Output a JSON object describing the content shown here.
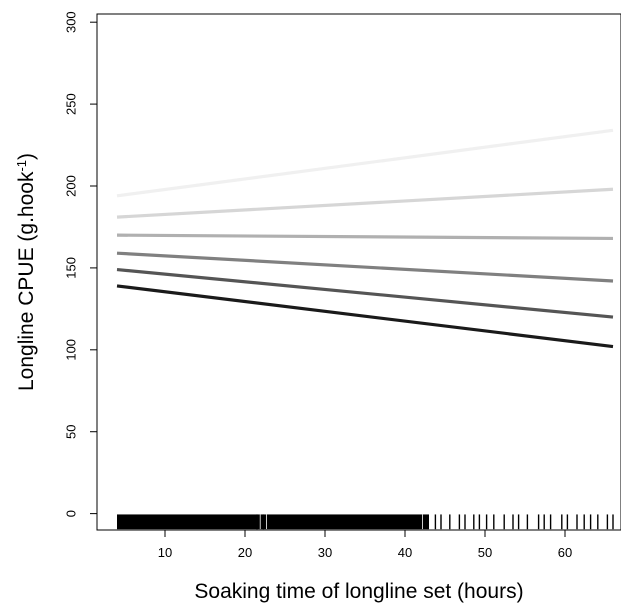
{
  "chart_data": {
    "type": "line",
    "title": "",
    "xlabel": "Soaking time of longline set (hours)",
    "ylabel": "Longline CPUE (g.hook",
    "ylabel_superscript": "-1",
    "ylabel_suffix": ")",
    "xlim": [
      1.5,
      67
    ],
    "ylim": [
      -10,
      305
    ],
    "xticks": [
      10,
      20,
      30,
      40,
      50,
      60
    ],
    "yticks": [
      0,
      50,
      100,
      150,
      200,
      250,
      300
    ],
    "grid": false,
    "legend": "none",
    "x": [
      4,
      66
    ],
    "series": [
      {
        "values": [
          194,
          234
        ],
        "color": "#f0f0f0"
      },
      {
        "values": [
          181,
          198
        ],
        "color": "#d6d6d6"
      },
      {
        "values": [
          170,
          168
        ],
        "color": "#b0b0b0"
      },
      {
        "values": [
          159,
          142
        ],
        "color": "#808080"
      },
      {
        "values": [
          149,
          120
        ],
        "color": "#555555"
      },
      {
        "values": [
          139,
          102
        ],
        "color": "#1a1a1a"
      }
    ],
    "rug": {
      "position": "bottom",
      "dense_range": [
        4,
        43
      ],
      "sparse_x": [
        21.5,
        22.3,
        43.8,
        44.5,
        45.6,
        46.8,
        47.5,
        48.6,
        49.3,
        50.2,
        51.1,
        52.4,
        53.5,
        54.2,
        55.3,
        56.7,
        57.4,
        58.2,
        59.6,
        60.3,
        61.5,
        62.4,
        63.2,
        64.1,
        65.3,
        66.0
      ]
    }
  }
}
